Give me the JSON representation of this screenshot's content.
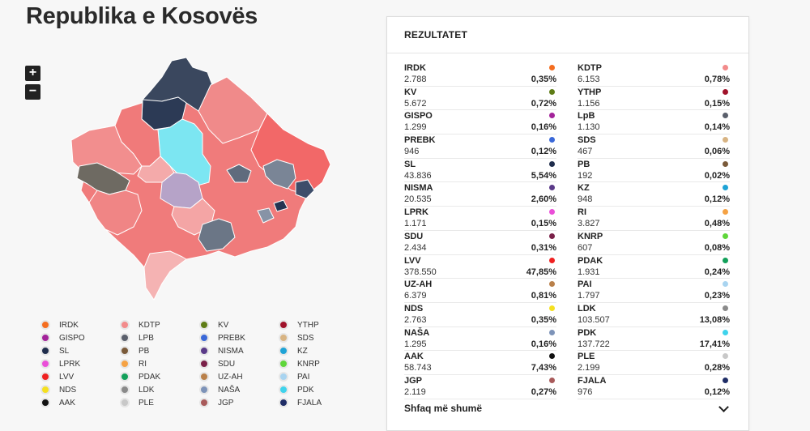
{
  "page": {
    "title": "Republika e Kosovës"
  },
  "zoom": {
    "in_label": "+",
    "out_label": "−"
  },
  "panel": {
    "header": "REZULTATET",
    "show_more": "Shfaq më shumë"
  },
  "results": [
    {
      "name": "IRDK",
      "votes": "2.788",
      "pct": "0,35%",
      "color": "#f46d1f"
    },
    {
      "name": "KDTP",
      "votes": "6.153",
      "pct": "0,78%",
      "color": "#f28b8b"
    },
    {
      "name": "KV",
      "votes": "5.672",
      "pct": "0,72%",
      "color": "#5e7c16"
    },
    {
      "name": "YTHP",
      "votes": "1.156",
      "pct": "0,15%",
      "color": "#a0122a"
    },
    {
      "name": "GISPO",
      "votes": "1.299",
      "pct": "0,16%",
      "color": "#a3239a"
    },
    {
      "name": "LpB",
      "votes": "1.130",
      "pct": "0,14%",
      "color": "#5a5f6b"
    },
    {
      "name": "PREBK",
      "votes": "946",
      "pct": "0,12%",
      "color": "#3a68d8"
    },
    {
      "name": "SDS",
      "votes": "467",
      "pct": "0,06%",
      "color": "#d8b483"
    },
    {
      "name": "SL",
      "votes": "43.836",
      "pct": "5,54%",
      "color": "#1f2d4c"
    },
    {
      "name": "PB",
      "votes": "192",
      "pct": "0,02%",
      "color": "#7a5a3a"
    },
    {
      "name": "NISMA",
      "votes": "20.535",
      "pct": "2,60%",
      "color": "#5a3a88"
    },
    {
      "name": "KZ",
      "votes": "948",
      "pct": "0,12%",
      "color": "#1ea3d6"
    },
    {
      "name": "LPRK",
      "votes": "1.171",
      "pct": "0,15%",
      "color": "#ea4fd8"
    },
    {
      "name": "RI",
      "votes": "3.827",
      "pct": "0,48%",
      "color": "#f5a244"
    },
    {
      "name": "SDU",
      "votes": "2.434",
      "pct": "0,31%",
      "color": "#7a2048"
    },
    {
      "name": "KNRP",
      "votes": "607",
      "pct": "0,08%",
      "color": "#5fd63a"
    },
    {
      "name": "LVV",
      "votes": "378.550",
      "pct": "47,85%",
      "color": "#ef2020"
    },
    {
      "name": "PDAK",
      "votes": "1.931",
      "pct": "0,24%",
      "color": "#12a05a"
    },
    {
      "name": "UZ-AH",
      "votes": "6.379",
      "pct": "0,81%",
      "color": "#b9804a"
    },
    {
      "name": "PAI",
      "votes": "1.797",
      "pct": "0,23%",
      "color": "#a9d4f0"
    },
    {
      "name": "NDS",
      "votes": "2.763",
      "pct": "0,35%",
      "color": "#f5e020"
    },
    {
      "name": "LDK",
      "votes": "103.507",
      "pct": "13,08%",
      "color": "#8a8a8a"
    },
    {
      "name": "NAŠA",
      "votes": "1.295",
      "pct": "0,16%",
      "color": "#7d93b8"
    },
    {
      "name": "PDK",
      "votes": "137.722",
      "pct": "17,41%",
      "color": "#3fd3ec"
    },
    {
      "name": "AAK",
      "votes": "58.743",
      "pct": "7,43%",
      "color": "#111111"
    },
    {
      "name": "PLE",
      "votes": "2.199",
      "pct": "0,28%",
      "color": "#c8c8c8"
    },
    {
      "name": "JGP",
      "votes": "2.119",
      "pct": "0,27%",
      "color": "#a85a5a"
    },
    {
      "name": "FJALA",
      "votes": "976",
      "pct": "0,12%",
      "color": "#1f2d66"
    }
  ],
  "legend": [
    {
      "name": "IRDK",
      "color": "#f46d1f"
    },
    {
      "name": "KDTP",
      "color": "#f28b8b"
    },
    {
      "name": "KV",
      "color": "#5e7c16"
    },
    {
      "name": "YTHP",
      "color": "#a0122a"
    },
    {
      "name": "GISPO",
      "color": "#a3239a"
    },
    {
      "name": "LPB",
      "color": "#5a5f6b"
    },
    {
      "name": "PREBK",
      "color": "#3a68d8"
    },
    {
      "name": "SDS",
      "color": "#d8b483"
    },
    {
      "name": "SL",
      "color": "#1f2d4c"
    },
    {
      "name": "PB",
      "color": "#7a5a3a"
    },
    {
      "name": "NISMA",
      "color": "#5a3a88"
    },
    {
      "name": "KZ",
      "color": "#1ea3d6"
    },
    {
      "name": "LPRK",
      "color": "#ea4fd8"
    },
    {
      "name": "RI",
      "color": "#f5a244"
    },
    {
      "name": "SDU",
      "color": "#7a2048"
    },
    {
      "name": "KNRP",
      "color": "#5fd63a"
    },
    {
      "name": "LVV",
      "color": "#ef2020"
    },
    {
      "name": "PDAK",
      "color": "#12a05a"
    },
    {
      "name": "UZ-AH",
      "color": "#b9804a"
    },
    {
      "name": "PAI",
      "color": "#a9d4f0"
    },
    {
      "name": "NDS",
      "color": "#f5e020"
    },
    {
      "name": "LDK",
      "color": "#8a8a8a"
    },
    {
      "name": "NAŠA",
      "color": "#7d93b8"
    },
    {
      "name": "PDK",
      "color": "#3fd3ec"
    },
    {
      "name": "AAK",
      "color": "#111111"
    },
    {
      "name": "PLE",
      "color": "#c8c8c8"
    },
    {
      "name": "JGP",
      "color": "#a85a5a"
    },
    {
      "name": "FJALA",
      "color": "#1f2d66"
    }
  ]
}
